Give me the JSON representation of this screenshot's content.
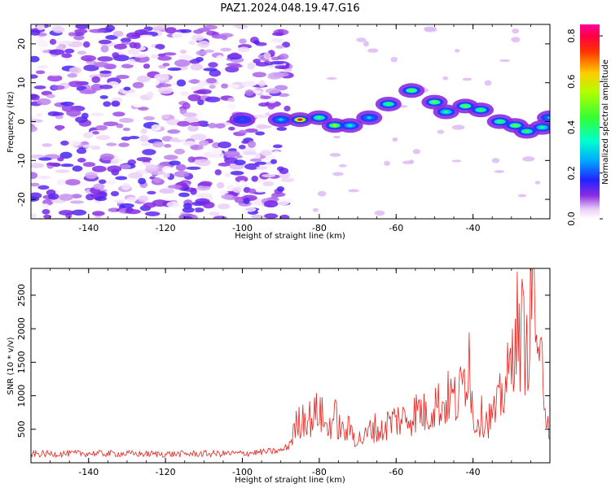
{
  "figure": {
    "title": "PAZ1.2024.048.19.47.G16"
  },
  "chart_data": [
    {
      "type": "heatmap",
      "title": "PAZ1.2024.048.19.47.G16",
      "xlabel": "Height of straight line (km)",
      "ylabel": "Frequency (Hz)",
      "xlim": [
        -155,
        -20
      ],
      "ylim": [
        -25,
        25
      ],
      "xticks": [
        -140,
        -120,
        -100,
        -80,
        -60,
        -40
      ],
      "yticks": [
        -20,
        -10,
        0,
        10,
        20
      ],
      "colorbar": {
        "label": "Normalized spectral amplitude",
        "range": [
          0,
          0.85
        ],
        "ticks": [
          0.0,
          0.2,
          0.4,
          0.6,
          0.8
        ],
        "colormap": "gist_rainbow (white to purple, blue, cyan, green, yellow, red, magenta)"
      },
      "features": [
        {
          "region": "noise",
          "x_range": [
            -155,
            -88
          ],
          "freq_range": [
            -25,
            25
          ],
          "amplitude_range": [
            0.0,
            0.15
          ]
        },
        {
          "region": "signal-track",
          "points": [
            {
              "x": -100,
              "freq": 0.5,
              "amplitude": 0.2
            },
            {
              "x": -90,
              "freq": 0.5,
              "amplitude": 0.3
            },
            {
              "x": -85,
              "freq": 0.5,
              "amplitude": 0.8
            },
            {
              "x": -80,
              "freq": 1.0,
              "amplitude": 0.45
            },
            {
              "x": -76,
              "freq": -1.0,
              "amplitude": 0.55
            },
            {
              "x": -72,
              "freq": -1.0,
              "amplitude": 0.35
            },
            {
              "x": -67,
              "freq": 1.0,
              "amplitude": 0.3
            },
            {
              "x": -62,
              "freq": 4.5,
              "amplitude": 0.45
            },
            {
              "x": -56,
              "freq": 8.0,
              "amplitude": 0.5
            },
            {
              "x": -50,
              "freq": 5.0,
              "amplitude": 0.5
            },
            {
              "x": -47,
              "freq": 2.5,
              "amplitude": 0.4
            },
            {
              "x": -42,
              "freq": 4.0,
              "amplitude": 0.5
            },
            {
              "x": -38,
              "freq": 3.0,
              "amplitude": 0.45
            },
            {
              "x": -33,
              "freq": 0.0,
              "amplitude": 0.45
            },
            {
              "x": -29,
              "freq": -1.0,
              "amplitude": 0.5
            },
            {
              "x": -26,
              "freq": -2.5,
              "amplitude": 0.45
            },
            {
              "x": -22,
              "freq": -1.5,
              "amplitude": 0.4
            },
            {
              "x": -20,
              "freq": 1.0,
              "amplitude": 0.3
            }
          ]
        }
      ]
    },
    {
      "type": "line",
      "xlabel": "Height of straight line (km)",
      "ylabel": "SNR (10 * v/v)",
      "xlim": [
        -155,
        -20
      ],
      "ylim": [
        0,
        2900
      ],
      "xticks": [
        -140,
        -120,
        -100,
        -80,
        -60,
        -40
      ],
      "yticks": [
        500,
        1000,
        1500,
        2000,
        2500
      ],
      "line_color": "#e8231e",
      "series": [
        {
          "x": [
            -155,
            -140,
            -120,
            -100,
            -90,
            -88,
            -86,
            -84,
            -82,
            -80,
            -78,
            -76,
            -74,
            -72,
            -70,
            -68,
            -66,
            -64,
            -62,
            -60,
            -58,
            -56,
            -54,
            -52,
            -50,
            -48,
            -46,
            -44,
            -42,
            -41,
            -40,
            -38,
            -36,
            -34,
            -32,
            -30,
            -29,
            -28,
            -27,
            -26,
            -25,
            -24,
            -23,
            -22,
            -21,
            -20
          ],
          "y": [
            130,
            140,
            130,
            140,
            180,
            250,
            550,
            700,
            650,
            800,
            500,
            700,
            450,
            500,
            350,
            380,
            550,
            450,
            600,
            650,
            650,
            700,
            800,
            700,
            900,
            850,
            1000,
            900,
            1300,
            1800,
            600,
            700,
            650,
            750,
            1100,
            1400,
            2300,
            1800,
            2000,
            1600,
            2500,
            2850,
            1200,
            1500,
            900,
            400
          ]
        }
      ]
    }
  ]
}
